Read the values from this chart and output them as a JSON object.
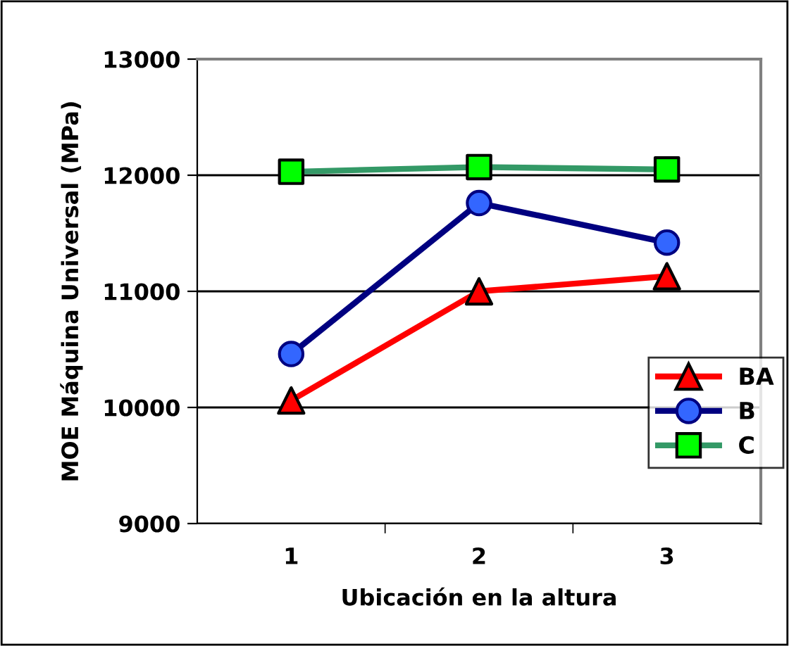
{
  "chart_data": {
    "type": "line",
    "xlabel": "Ubicación en la altura",
    "ylabel": "MOE Máquina Universal (MPa)",
    "categories": [
      "1",
      "2",
      "3"
    ],
    "series": [
      {
        "name": "BA",
        "color": "#ff0000",
        "marker": "triangle",
        "colors": [
          "#ff0000",
          "#ff0000",
          "#ff0000"
        ],
        "values": [
          10060,
          11000,
          11130
        ]
      },
      {
        "name": "B",
        "color": "#000080",
        "marker": "circle",
        "colors": [
          "#3366ff",
          "#3366ff",
          "#3366ff"
        ],
        "values": [
          10460,
          11760,
          11420
        ]
      },
      {
        "name": "C",
        "color": "#339966",
        "marker": "square",
        "colors": [
          "#00ff00",
          "#00ff00",
          "#00ff00"
        ],
        "values": [
          12030,
          12070,
          12050
        ]
      }
    ],
    "ylim": [
      9000,
      13000
    ],
    "yticks": [
      9000,
      10000,
      11000,
      12000,
      13000
    ],
    "grid": "y",
    "legend": "bottom right"
  }
}
